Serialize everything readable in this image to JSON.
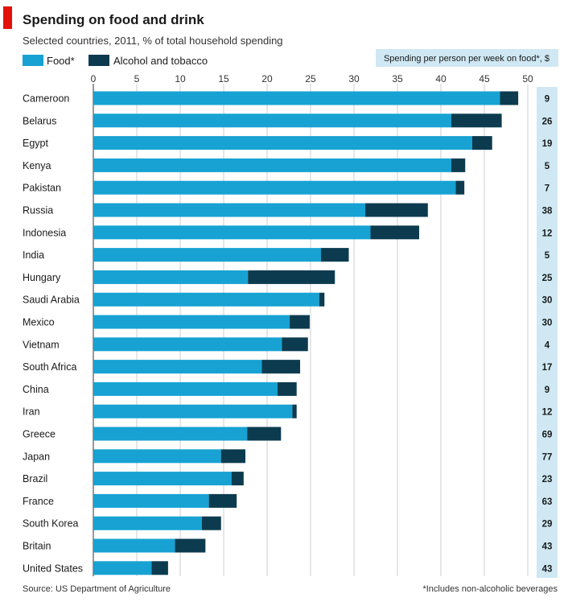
{
  "chart_data": {
    "type": "bar",
    "orientation": "horizontal",
    "stacked": true,
    "title": "Spending on food and drink",
    "subtitle": "Selected countries, 2011, % of total household spending",
    "categories": [
      "Cameroon",
      "Belarus",
      "Egypt",
      "Kenya",
      "Pakistan",
      "Russia",
      "Indonesia",
      "India",
      "Hungary",
      "Saudi Arabia",
      "Mexico",
      "Vietnam",
      "South Africa",
      "China",
      "Iran",
      "Greece",
      "Japan",
      "Brazil",
      "France",
      "South Korea",
      "Britain",
      "United States"
    ],
    "series": [
      {
        "name": "Food*",
        "color": "#17a2d3",
        "values": [
          46.8,
          41.2,
          43.6,
          41.2,
          41.7,
          31.3,
          31.9,
          26.2,
          17.8,
          26.0,
          22.6,
          21.7,
          19.4,
          21.2,
          22.9,
          17.7,
          14.7,
          15.9,
          13.3,
          12.5,
          9.4,
          6.7
        ]
      },
      {
        "name": "Alcohol and tobacco",
        "color": "#0c3b4f",
        "values": [
          2.1,
          5.8,
          2.3,
          1.6,
          1.0,
          7.2,
          5.6,
          3.2,
          10.0,
          0.6,
          2.3,
          3.0,
          4.4,
          2.2,
          0.5,
          3.9,
          2.8,
          1.4,
          3.2,
          2.2,
          3.5,
          1.9
        ]
      }
    ],
    "xlim": [
      0,
      50
    ],
    "xticks": [
      0,
      5,
      10,
      15,
      20,
      25,
      30,
      35,
      40,
      45,
      50
    ],
    "grid": true,
    "legend_position": "top-left",
    "side_panel": {
      "header": "Spending per person per week on food*, $",
      "values": [
        "9",
        "26",
        "19",
        "5",
        "7",
        "38",
        "12",
        "5",
        "25",
        "30",
        "30",
        "4",
        "17",
        "9",
        "12",
        "69",
        "77",
        "23",
        "63",
        "29",
        "43",
        "43"
      ]
    },
    "source": "Source: US Department of Agriculture",
    "footnote": "*Includes non-alcoholic beverages"
  },
  "colors": {
    "accent": "#e3120b",
    "food": "#17a2d3",
    "alcohol": "#0c3b4f",
    "panel": "#cfe8f3",
    "grid": "#c9cfd3"
  }
}
